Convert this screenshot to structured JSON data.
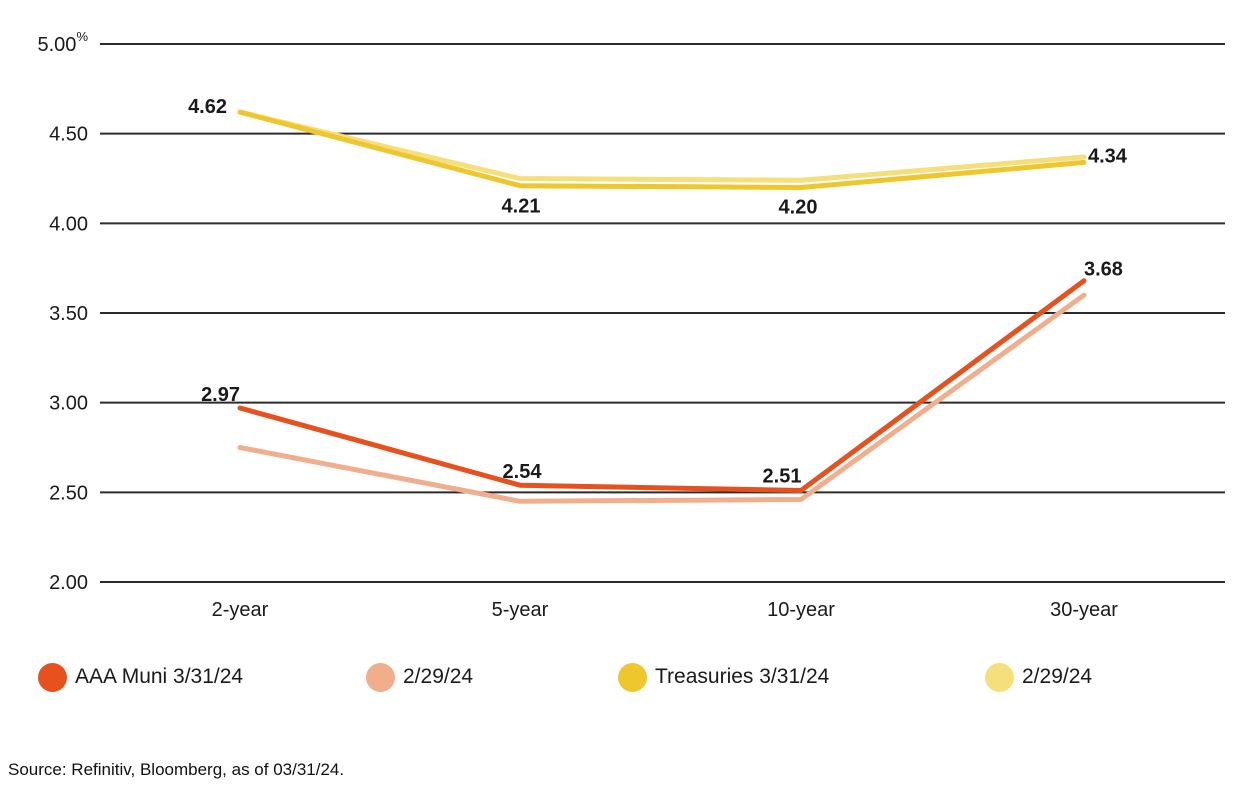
{
  "chart_data": {
    "type": "line",
    "title": "",
    "xlabel": "",
    "ylabel": "",
    "unit": "%",
    "grid": true,
    "legend_position": "bottom",
    "categories": [
      "2-year",
      "5-year",
      "10-year",
      "30-year"
    ],
    "ylim": [
      2.0,
      5.0
    ],
    "yticks": [
      5.0,
      4.5,
      4.0,
      3.5,
      3.0,
      2.5,
      2.0
    ],
    "ytick_labels": [
      "5.00",
      "4.50",
      "4.00",
      "3.50",
      "3.00",
      "2.50",
      "2.00"
    ],
    "series": [
      {
        "id": "tsy_229",
        "name": "2/29/24",
        "color": "#F5DF7D",
        "values": [
          4.62,
          4.25,
          4.24,
          4.37
        ],
        "show_labels": false
      },
      {
        "id": "tsy_331",
        "name": "Treasuries 3/31/24",
        "color": "#EEC62E",
        "values": [
          4.62,
          4.21,
          4.2,
          4.34
        ],
        "show_labels": true
      },
      {
        "id": "muni_229",
        "name": "2/29/24",
        "color": "#F0AE8D",
        "values": [
          2.75,
          2.45,
          2.46,
          3.6
        ],
        "show_labels": false
      },
      {
        "id": "muni_331",
        "name": "AAA Muni 3/31/24",
        "color": "#E7511E",
        "values": [
          2.97,
          2.54,
          2.51,
          3.68
        ],
        "show_labels": true
      }
    ]
  },
  "legend": {
    "items": [
      {
        "label": "AAA Muni 3/31/24",
        "color": "#E7511E"
      },
      {
        "label": "2/29/24",
        "color": "#F0AE8D"
      },
      {
        "label": "Treasuries 3/31/24",
        "color": "#EEC62E"
      },
      {
        "label": "2/29/24",
        "color": "#F5DF7D"
      }
    ]
  },
  "source": "Source: Refinitiv, Bloomberg, as of 03/31/24.",
  "colors": {
    "text": "#1a1a1a",
    "gridline": "#2b2b2b",
    "background": "#ffffff"
  }
}
